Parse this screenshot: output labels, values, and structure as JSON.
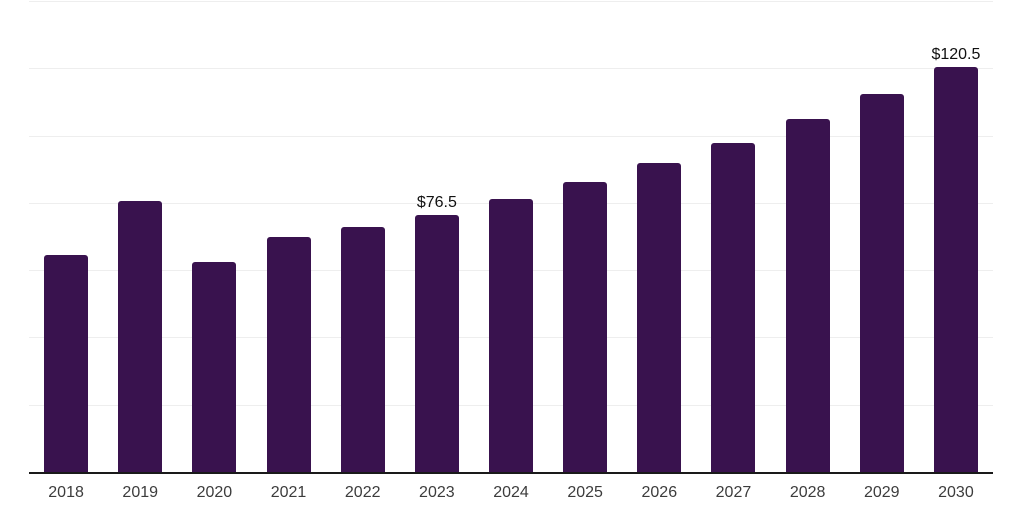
{
  "chart_data": {
    "type": "bar",
    "title": "",
    "xlabel": "",
    "ylabel": "",
    "categories": [
      "2018",
      "2019",
      "2020",
      "2021",
      "2022",
      "2023",
      "2024",
      "2025",
      "2026",
      "2027",
      "2028",
      "2029",
      "2030"
    ],
    "values": [
      64.4,
      80.6,
      62.5,
      70.0,
      72.7,
      76.5,
      81.2,
      86.1,
      91.8,
      97.9,
      104.9,
      112.4,
      120.5
    ],
    "data_labels": [
      "",
      "",
      "",
      "",
      "",
      "$76.5",
      "",
      "",
      "",
      "",
      "",
      "",
      "$120.5"
    ],
    "ylim": [
      0,
      140
    ],
    "grid": true,
    "gridline_values": [
      20,
      40,
      60,
      80,
      100,
      120,
      140
    ],
    "legend_position": "none",
    "colors": {
      "bar": "#39124E",
      "gridline": "#EEEEEE",
      "axis": "#1A1A1A",
      "tick_label": "#3C3C3C",
      "data_label": "#111111",
      "background": "#FFFFFF"
    }
  }
}
